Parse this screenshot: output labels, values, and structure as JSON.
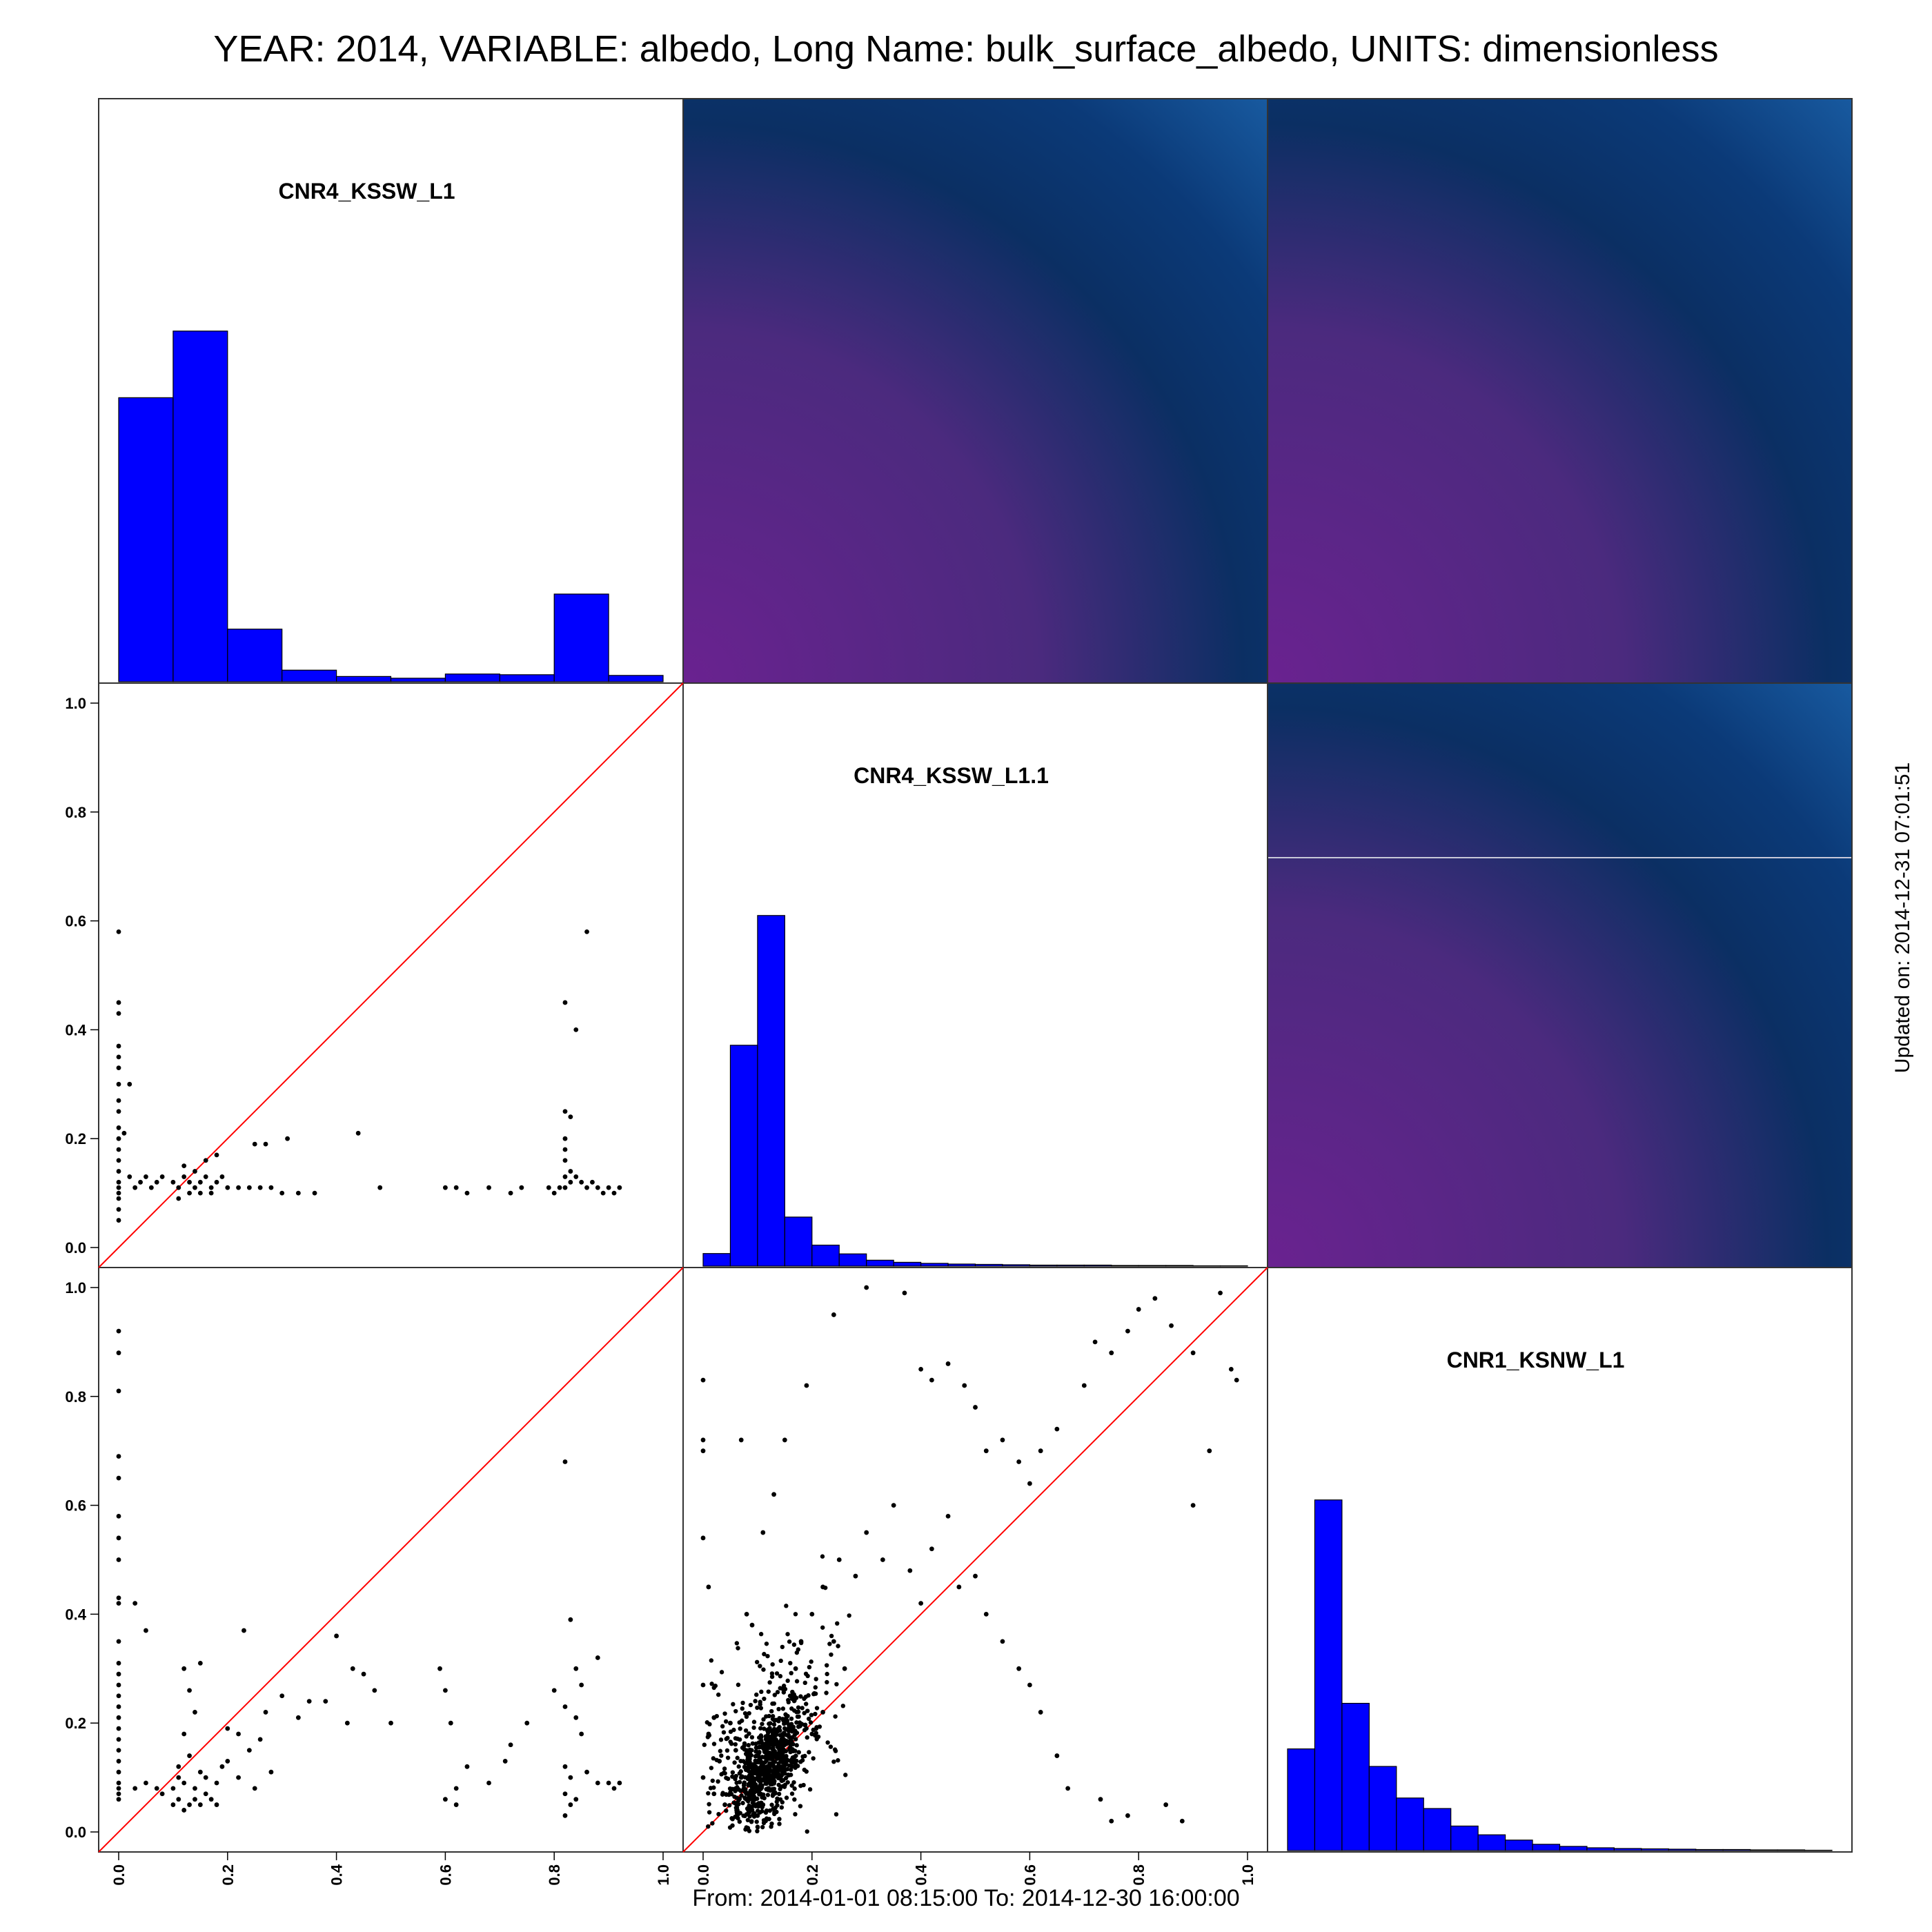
{
  "title": "YEAR: 2014, VARIABLE: albedo, Long Name: bulk_surface_albedo, UNITS: dimensionless",
  "footer": "From: 2014-01-01 08:15:00 To: 2014-12-30 16:00:00",
  "updated": "Updated on: 2014-12-31 07:01:51",
  "colors": {
    "hist_fill": "#0000ff",
    "identity_line": "#ff0000",
    "points": "#000000",
    "corr_purple": "#6a2290",
    "corr_navy": "#0b2f63",
    "corr_blue": "#1a5fa6"
  },
  "chart_data": {
    "type": "scatter-matrix",
    "variables": [
      "CNR4_KSSW_L1",
      "CNR4_KSSW_L1.1",
      "CNR1_KSNW_L1"
    ],
    "axis_range": [
      0,
      1
    ],
    "tick_labels": [
      "0.0",
      "0.2",
      "0.4",
      "0.6",
      "0.8",
      "1.0"
    ],
    "reference_line": "y = x",
    "histograms": [
      {
        "variable": "CNR4_KSSW_L1",
        "bin_width": 0.1,
        "bins_from": 0.0,
        "relative_counts": [
          0.81,
          1.0,
          0.15,
          0.033,
          0.015,
          0.01,
          0.022,
          0.02,
          0.25,
          0.018
        ]
      },
      {
        "variable": "CNR4_KSSW_L1.1",
        "bin_width": 0.05,
        "bins_from": 0.0,
        "relative_counts": [
          0.036,
          0.63,
          1.0,
          0.14,
          0.06,
          0.035,
          0.017,
          0.011,
          0.008,
          0.006,
          0.005,
          0.004,
          0.003,
          0.003,
          0.003,
          0.002,
          0.002,
          0.002,
          0.001,
          0.001
        ]
      },
      {
        "variable": "CNR1_KSNW_L1",
        "bin_width": 0.05,
        "bins_from": 0.0,
        "relative_counts": [
          0.29,
          1.0,
          0.42,
          0.24,
          0.15,
          0.12,
          0.07,
          0.045,
          0.03,
          0.018,
          0.012,
          0.008,
          0.006,
          0.005,
          0.004,
          0.003,
          0.003,
          0.002,
          0.002,
          0.001
        ]
      }
    ],
    "scatter_panels": [
      {
        "x": "CNR4_KSSW_L1",
        "y": "CNR4_KSSW_L1.1",
        "points": [
          [
            0.0,
            0.58
          ],
          [
            0.0,
            0.45
          ],
          [
            0.0,
            0.43
          ],
          [
            0.0,
            0.37
          ],
          [
            0.0,
            0.35
          ],
          [
            0.0,
            0.33
          ],
          [
            0.0,
            0.3
          ],
          [
            0.0,
            0.27
          ],
          [
            0.0,
            0.25
          ],
          [
            0.0,
            0.22
          ],
          [
            0.0,
            0.2
          ],
          [
            0.0,
            0.18
          ],
          [
            0.0,
            0.16
          ],
          [
            0.0,
            0.14
          ],
          [
            0.0,
            0.12
          ],
          [
            0.0,
            0.11
          ],
          [
            0.0,
            0.1
          ],
          [
            0.0,
            0.09
          ],
          [
            0.0,
            0.07
          ],
          [
            0.0,
            0.05
          ],
          [
            0.02,
            0.3
          ],
          [
            0.01,
            0.21
          ],
          [
            0.02,
            0.13
          ],
          [
            0.03,
            0.11
          ],
          [
            0.04,
            0.12
          ],
          [
            0.05,
            0.13
          ],
          [
            0.06,
            0.11
          ],
          [
            0.07,
            0.12
          ],
          [
            0.08,
            0.13
          ],
          [
            0.1,
            0.12
          ],
          [
            0.11,
            0.11
          ],
          [
            0.12,
            0.13
          ],
          [
            0.13,
            0.12
          ],
          [
            0.14,
            0.11
          ],
          [
            0.15,
            0.12
          ],
          [
            0.16,
            0.13
          ],
          [
            0.17,
            0.11
          ],
          [
            0.18,
            0.12
          ],
          [
            0.19,
            0.13
          ],
          [
            0.2,
            0.11
          ],
          [
            0.12,
            0.15
          ],
          [
            0.14,
            0.14
          ],
          [
            0.16,
            0.16
          ],
          [
            0.18,
            0.17
          ],
          [
            0.11,
            0.09
          ],
          [
            0.13,
            0.1
          ],
          [
            0.15,
            0.1
          ],
          [
            0.17,
            0.1
          ],
          [
            0.22,
            0.11
          ],
          [
            0.24,
            0.11
          ],
          [
            0.26,
            0.11
          ],
          [
            0.28,
            0.11
          ],
          [
            0.3,
            0.1
          ],
          [
            0.33,
            0.1
          ],
          [
            0.36,
            0.1
          ],
          [
            0.25,
            0.19
          ],
          [
            0.27,
            0.19
          ],
          [
            0.31,
            0.2
          ],
          [
            0.44,
            0.21
          ],
          [
            0.48,
            0.11
          ],
          [
            0.6,
            0.11
          ],
          [
            0.62,
            0.11
          ],
          [
            0.64,
            0.1
          ],
          [
            0.68,
            0.11
          ],
          [
            0.72,
            0.1
          ],
          [
            0.74,
            0.11
          ],
          [
            0.79,
            0.11
          ],
          [
            0.82,
            0.45
          ],
          [
            0.84,
            0.4
          ],
          [
            0.86,
            0.58
          ],
          [
            0.82,
            0.25
          ],
          [
            0.83,
            0.24
          ],
          [
            0.82,
            0.2
          ],
          [
            0.82,
            0.18
          ],
          [
            0.82,
            0.16
          ],
          [
            0.83,
            0.14
          ],
          [
            0.82,
            0.13
          ],
          [
            0.83,
            0.12
          ],
          [
            0.82,
            0.11
          ],
          [
            0.84,
            0.13
          ],
          [
            0.85,
            0.12
          ],
          [
            0.86,
            0.11
          ],
          [
            0.87,
            0.12
          ],
          [
            0.88,
            0.11
          ],
          [
            0.89,
            0.1
          ],
          [
            0.9,
            0.11
          ],
          [
            0.91,
            0.1
          ],
          [
            0.92,
            0.11
          ],
          [
            0.81,
            0.11
          ],
          [
            0.8,
            0.1
          ]
        ]
      },
      {
        "x": "CNR4_KSSW_L1",
        "y": "CNR1_KSNW_L1",
        "points": [
          [
            0.0,
            0.92
          ],
          [
            0.0,
            0.88
          ],
          [
            0.0,
            0.81
          ],
          [
            0.0,
            0.69
          ],
          [
            0.0,
            0.65
          ],
          [
            0.0,
            0.58
          ],
          [
            0.0,
            0.54
          ],
          [
            0.0,
            0.5
          ],
          [
            0.0,
            0.43
          ],
          [
            0.0,
            0.42
          ],
          [
            0.0,
            0.35
          ],
          [
            0.0,
            0.31
          ],
          [
            0.0,
            0.29
          ],
          [
            0.0,
            0.27
          ],
          [
            0.0,
            0.25
          ],
          [
            0.0,
            0.23
          ],
          [
            0.0,
            0.21
          ],
          [
            0.0,
            0.19
          ],
          [
            0.0,
            0.17
          ],
          [
            0.0,
            0.15
          ],
          [
            0.0,
            0.13
          ],
          [
            0.0,
            0.11
          ],
          [
            0.0,
            0.09
          ],
          [
            0.0,
            0.08
          ],
          [
            0.0,
            0.07
          ],
          [
            0.0,
            0.06
          ],
          [
            0.03,
            0.42
          ],
          [
            0.05,
            0.37
          ],
          [
            0.03,
            0.08
          ],
          [
            0.05,
            0.09
          ],
          [
            0.07,
            0.08
          ],
          [
            0.08,
            0.07
          ],
          [
            0.1,
            0.05
          ],
          [
            0.11,
            0.06
          ],
          [
            0.12,
            0.04
          ],
          [
            0.13,
            0.05
          ],
          [
            0.14,
            0.06
          ],
          [
            0.15,
            0.05
          ],
          [
            0.16,
            0.07
          ],
          [
            0.17,
            0.06
          ],
          [
            0.18,
            0.05
          ],
          [
            0.1,
            0.08
          ],
          [
            0.12,
            0.09
          ],
          [
            0.14,
            0.08
          ],
          [
            0.11,
            0.12
          ],
          [
            0.13,
            0.14
          ],
          [
            0.15,
            0.11
          ],
          [
            0.12,
            0.18
          ],
          [
            0.14,
            0.22
          ],
          [
            0.13,
            0.26
          ],
          [
            0.12,
            0.3
          ],
          [
            0.15,
            0.31
          ],
          [
            0.11,
            0.1
          ],
          [
            0.16,
            0.1
          ],
          [
            0.18,
            0.09
          ],
          [
            0.19,
            0.12
          ],
          [
            0.2,
            0.13
          ],
          [
            0.2,
            0.19
          ],
          [
            0.22,
            0.18
          ],
          [
            0.24,
            0.15
          ],
          [
            0.26,
            0.17
          ],
          [
            0.27,
            0.22
          ],
          [
            0.3,
            0.25
          ],
          [
            0.33,
            0.21
          ],
          [
            0.23,
            0.37
          ],
          [
            0.4,
            0.36
          ],
          [
            0.22,
            0.1
          ],
          [
            0.25,
            0.08
          ],
          [
            0.28,
            0.11
          ],
          [
            0.35,
            0.24
          ],
          [
            0.38,
            0.24
          ],
          [
            0.43,
            0.3
          ],
          [
            0.45,
            0.29
          ],
          [
            0.47,
            0.26
          ],
          [
            0.42,
            0.2
          ],
          [
            0.5,
            0.2
          ],
          [
            0.59,
            0.3
          ],
          [
            0.6,
            0.26
          ],
          [
            0.61,
            0.2
          ],
          [
            0.6,
            0.06
          ],
          [
            0.62,
            0.05
          ],
          [
            0.62,
            0.08
          ],
          [
            0.64,
            0.12
          ],
          [
            0.68,
            0.09
          ],
          [
            0.71,
            0.13
          ],
          [
            0.72,
            0.16
          ],
          [
            0.75,
            0.2
          ],
          [
            0.8,
            0.26
          ],
          [
            0.82,
            0.68
          ],
          [
            0.83,
            0.39
          ],
          [
            0.84,
            0.3
          ],
          [
            0.85,
            0.27
          ],
          [
            0.88,
            0.32
          ],
          [
            0.82,
            0.23
          ],
          [
            0.84,
            0.21
          ],
          [
            0.85,
            0.18
          ],
          [
            0.82,
            0.12
          ],
          [
            0.83,
            0.1
          ],
          [
            0.82,
            0.07
          ],
          [
            0.83,
            0.05
          ],
          [
            0.82,
            0.03
          ],
          [
            0.84,
            0.06
          ],
          [
            0.86,
            0.11
          ],
          [
            0.88,
            0.09
          ],
          [
            0.9,
            0.09
          ],
          [
            0.91,
            0.08
          ],
          [
            0.92,
            0.09
          ]
        ]
      },
      {
        "x": "CNR4_KSSW_L1.1",
        "y": "CNR1_KSNW_L1",
        "points": [
          [
            0.0,
            0.83
          ],
          [
            0.0,
            0.72
          ],
          [
            0.0,
            0.7
          ],
          [
            0.0,
            0.54
          ],
          [
            0.01,
            0.45
          ],
          [
            0.0,
            0.27
          ],
          [
            0.02,
            0.21
          ],
          [
            0.01,
            0.18
          ],
          [
            0.03,
            0.13
          ],
          [
            0.0,
            0.1
          ],
          [
            0.02,
            0.07
          ],
          [
            0.04,
            0.05
          ],
          [
            0.07,
            0.72
          ],
          [
            0.08,
            0.4
          ],
          [
            0.09,
            0.38
          ],
          [
            0.11,
            0.55
          ],
          [
            0.13,
            0.62
          ],
          [
            0.15,
            0.72
          ],
          [
            0.19,
            0.82
          ],
          [
            0.24,
            0.95
          ],
          [
            0.3,
            1.0
          ],
          [
            0.37,
            0.99
          ],
          [
            0.4,
            0.85
          ],
          [
            0.42,
            0.83
          ],
          [
            0.45,
            0.86
          ],
          [
            0.48,
            0.82
          ],
          [
            0.5,
            0.78
          ],
          [
            0.52,
            0.7
          ],
          [
            0.55,
            0.72
          ],
          [
            0.58,
            0.68
          ],
          [
            0.6,
            0.64
          ],
          [
            0.62,
            0.7
          ],
          [
            0.65,
            0.74
          ],
          [
            0.7,
            0.82
          ],
          [
            0.72,
            0.9
          ],
          [
            0.75,
            0.88
          ],
          [
            0.78,
            0.92
          ],
          [
            0.8,
            0.96
          ],
          [
            0.83,
            0.98
          ],
          [
            0.86,
            0.93
          ],
          [
            0.9,
            0.88
          ],
          [
            0.95,
            0.99
          ],
          [
            0.97,
            0.85
          ],
          [
            0.98,
            0.83
          ],
          [
            0.93,
            0.7
          ],
          [
            0.9,
            0.6
          ],
          [
            0.3,
            0.55
          ],
          [
            0.33,
            0.5
          ],
          [
            0.35,
            0.6
          ],
          [
            0.38,
            0.48
          ],
          [
            0.4,
            0.42
          ],
          [
            0.42,
            0.52
          ],
          [
            0.45,
            0.58
          ],
          [
            0.47,
            0.45
          ],
          [
            0.5,
            0.47
          ],
          [
            0.52,
            0.4
          ],
          [
            0.55,
            0.35
          ],
          [
            0.58,
            0.3
          ],
          [
            0.6,
            0.27
          ],
          [
            0.62,
            0.22
          ],
          [
            0.65,
            0.14
          ],
          [
            0.67,
            0.08
          ],
          [
            0.73,
            0.06
          ],
          [
            0.75,
            0.02
          ],
          [
            0.78,
            0.03
          ],
          [
            0.85,
            0.05
          ],
          [
            0.88,
            0.02
          ],
          [
            0.05,
            0.2
          ],
          [
            0.06,
            0.15
          ],
          [
            0.07,
            0.1
          ],
          [
            0.08,
            0.06
          ],
          [
            0.09,
            0.04
          ],
          [
            0.1,
            0.03
          ],
          [
            0.11,
            0.05
          ],
          [
            0.12,
            0.08
          ],
          [
            0.13,
            0.12
          ],
          [
            0.14,
            0.16
          ],
          [
            0.15,
            0.2
          ],
          [
            0.16,
            0.25
          ],
          [
            0.17,
            0.3
          ],
          [
            0.18,
            0.35
          ],
          [
            0.2,
            0.4
          ],
          [
            0.22,
            0.45
          ],
          [
            0.25,
            0.5
          ],
          [
            0.28,
            0.47
          ],
          [
            0.24,
            0.35
          ],
          [
            0.26,
            0.3
          ],
          [
            0.22,
            0.22
          ],
          [
            0.2,
            0.18
          ]
        ],
        "dense_cluster": {
          "x_center": 0.12,
          "y_center": 0.12,
          "count_shown": 900
        }
      }
    ],
    "correlation_panels": [
      {
        "pair": [
          "CNR4_KSSW_L1",
          "CNR4_KSSW_L1.1"
        ],
        "style": "purple-blue gradient"
      },
      {
        "pair": [
          "CNR4_KSSW_L1",
          "CNR1_KSNW_L1"
        ],
        "style": "purple-blue gradient"
      },
      {
        "pair": [
          "CNR4_KSSW_L1.1",
          "CNR1_KSNW_L1"
        ],
        "style": "purple-blue gradient"
      }
    ]
  }
}
